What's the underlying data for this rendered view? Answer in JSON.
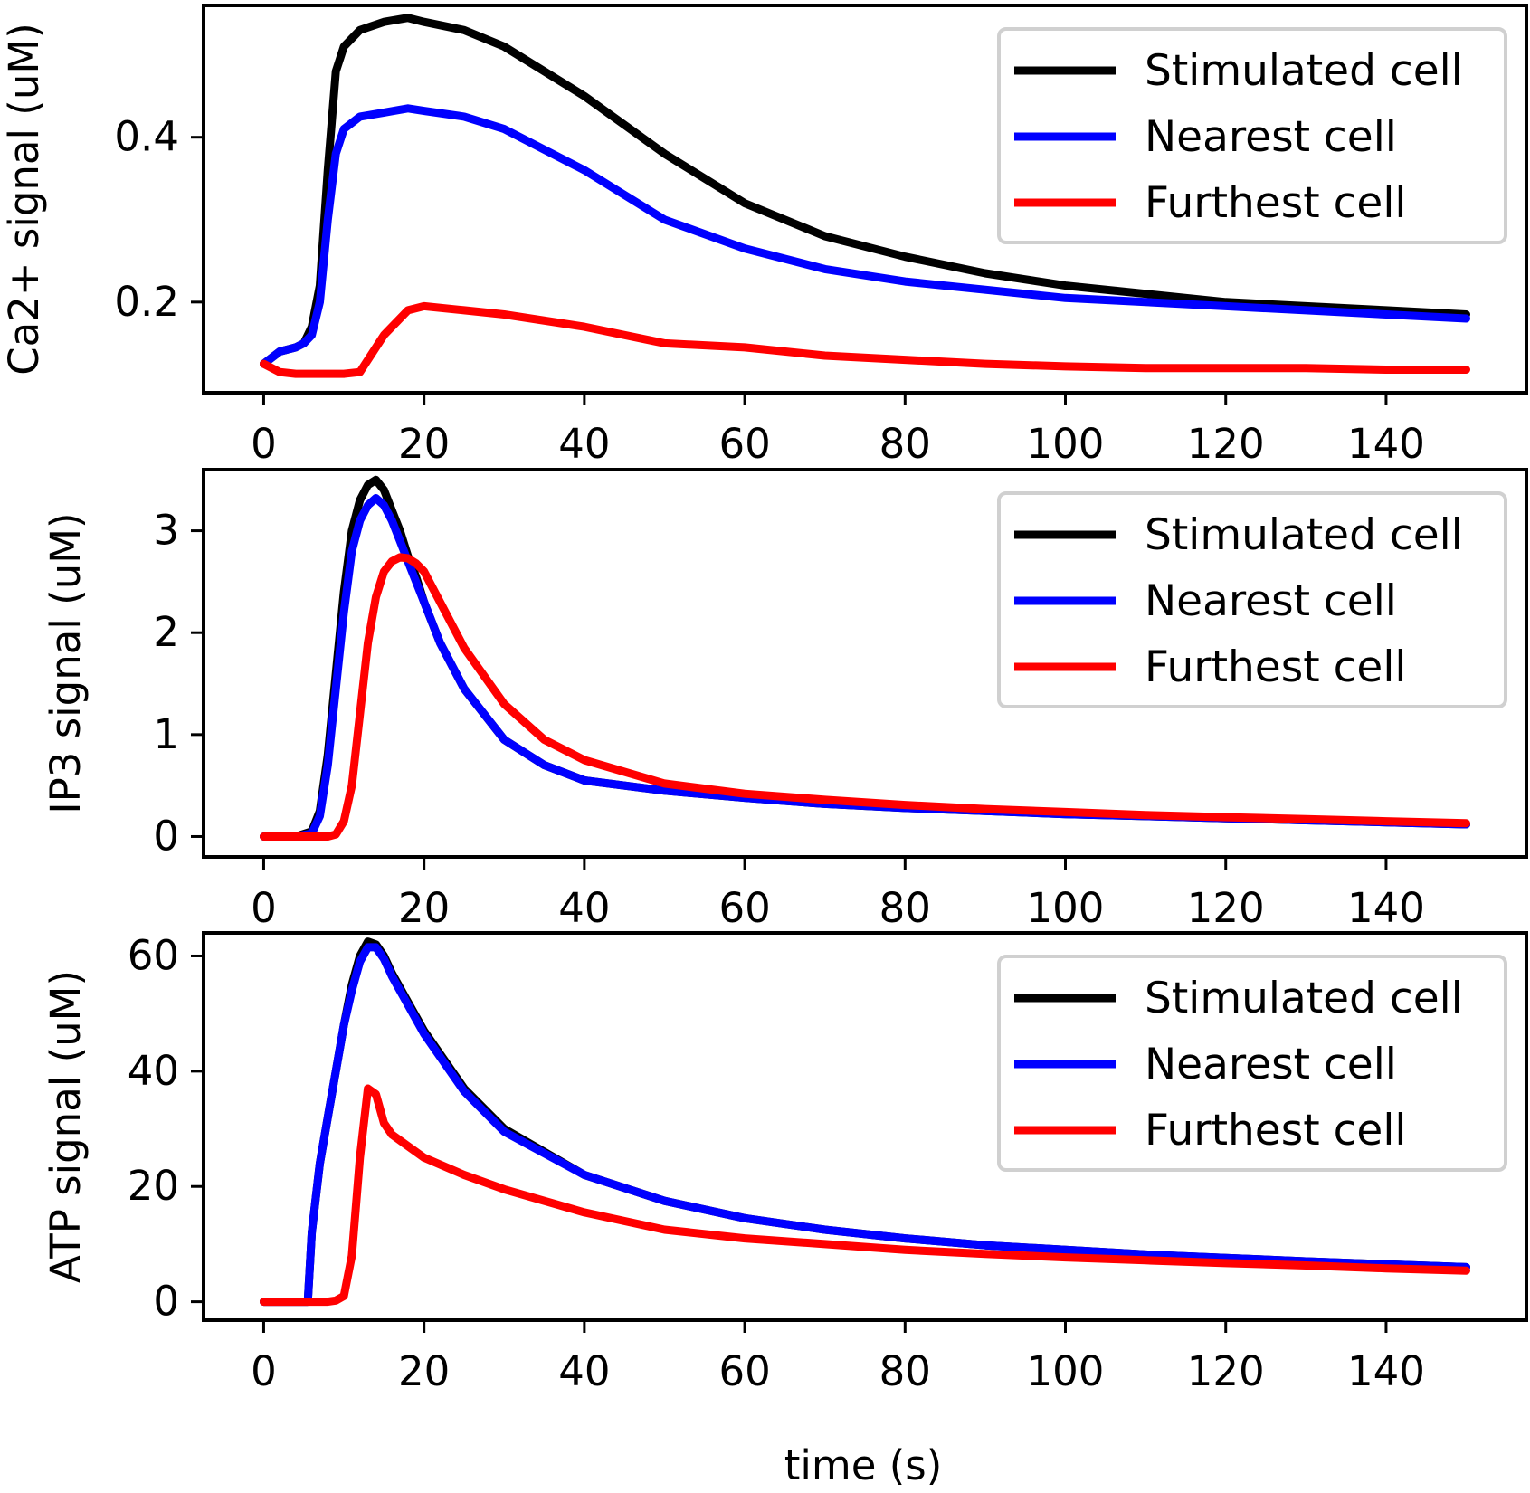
{
  "figure": {
    "xlabel": "time (s)",
    "xticks": [
      0,
      20,
      40,
      60,
      80,
      100,
      120,
      140
    ]
  },
  "chart_data": [
    {
      "type": "line",
      "ylabel": "Ca2+ signal (uM)",
      "xlim": [
        -7.5,
        157.5
      ],
      "ylim": [
        0.09,
        0.56
      ],
      "yticks": [
        0.2,
        0.4
      ],
      "ytick_labels": [
        "0.2",
        "0.4"
      ],
      "legend_position": "top-right",
      "grid": false,
      "x": [
        0,
        2,
        4,
        5,
        6,
        7,
        8,
        9,
        10,
        12,
        15,
        18,
        20,
        25,
        30,
        40,
        50,
        60,
        70,
        80,
        90,
        100,
        110,
        120,
        130,
        140,
        150
      ],
      "series": [
        {
          "name": "Stimulated cell",
          "color": "#000000",
          "values": [
            0.125,
            0.14,
            0.145,
            0.15,
            0.17,
            0.22,
            0.36,
            0.48,
            0.51,
            0.53,
            0.54,
            0.545,
            0.54,
            0.53,
            0.51,
            0.45,
            0.38,
            0.32,
            0.28,
            0.255,
            0.235,
            0.22,
            0.21,
            0.2,
            0.195,
            0.19,
            0.185
          ]
        },
        {
          "name": "Nearest cell",
          "color": "#0000ff",
          "values": [
            0.125,
            0.14,
            0.145,
            0.15,
            0.16,
            0.2,
            0.3,
            0.38,
            0.41,
            0.425,
            0.43,
            0.435,
            0.432,
            0.425,
            0.41,
            0.36,
            0.3,
            0.265,
            0.24,
            0.225,
            0.215,
            0.205,
            0.2,
            0.195,
            0.19,
            0.185,
            0.18
          ]
        },
        {
          "name": "Furthest cell",
          "color": "#ff0000",
          "values": [
            0.125,
            0.115,
            0.113,
            0.113,
            0.113,
            0.113,
            0.113,
            0.113,
            0.113,
            0.115,
            0.16,
            0.19,
            0.195,
            0.19,
            0.185,
            0.17,
            0.15,
            0.145,
            0.135,
            0.13,
            0.125,
            0.122,
            0.12,
            0.12,
            0.12,
            0.118,
            0.118
          ]
        }
      ]
    },
    {
      "type": "line",
      "ylabel": "IP3 signal (uM)",
      "xlim": [
        -7.5,
        157.5
      ],
      "ylim": [
        -0.2,
        3.6
      ],
      "yticks": [
        0,
        1,
        2,
        3
      ],
      "ytick_labels": [
        "0",
        "1",
        "2",
        "3"
      ],
      "legend_position": "top-right",
      "grid": false,
      "x": [
        0,
        4,
        6,
        7,
        8,
        9,
        10,
        11,
        12,
        13,
        14,
        15,
        16,
        17,
        18,
        19,
        20,
        22,
        25,
        30,
        35,
        40,
        50,
        60,
        70,
        80,
        90,
        100,
        110,
        120,
        130,
        140,
        150
      ],
      "series": [
        {
          "name": "Stimulated cell",
          "color": "#000000",
          "values": [
            0.0,
            0.0,
            0.05,
            0.25,
            0.8,
            1.6,
            2.4,
            3.0,
            3.3,
            3.45,
            3.5,
            3.4,
            3.2,
            3.0,
            2.75,
            2.55,
            2.3,
            1.9,
            1.45,
            0.95,
            0.7,
            0.55,
            0.45,
            0.38,
            0.32,
            0.28,
            0.25,
            0.22,
            0.2,
            0.18,
            0.16,
            0.14,
            0.12
          ]
        },
        {
          "name": "Nearest cell",
          "color": "#0000ff",
          "values": [
            0.0,
            0.0,
            0.03,
            0.2,
            0.7,
            1.45,
            2.2,
            2.8,
            3.1,
            3.25,
            3.32,
            3.25,
            3.1,
            2.9,
            2.7,
            2.5,
            2.3,
            1.9,
            1.45,
            0.95,
            0.7,
            0.55,
            0.45,
            0.38,
            0.32,
            0.28,
            0.25,
            0.22,
            0.2,
            0.18,
            0.16,
            0.14,
            0.12
          ]
        },
        {
          "name": "Furthest cell",
          "color": "#ff0000",
          "values": [
            0.0,
            0.0,
            0.0,
            0.0,
            0.0,
            0.02,
            0.15,
            0.5,
            1.2,
            1.9,
            2.35,
            2.6,
            2.7,
            2.74,
            2.73,
            2.68,
            2.6,
            2.3,
            1.85,
            1.3,
            0.95,
            0.75,
            0.52,
            0.42,
            0.36,
            0.31,
            0.27,
            0.24,
            0.21,
            0.19,
            0.17,
            0.15,
            0.13
          ]
        }
      ]
    },
    {
      "type": "line",
      "ylabel": "ATP signal (uM)",
      "xlim": [
        -7.5,
        157.5
      ],
      "ylim": [
        -3.2,
        64.0
      ],
      "yticks": [
        0,
        20,
        40,
        60
      ],
      "ytick_labels": [
        "0",
        "20",
        "40",
        "60"
      ],
      "legend_position": "top-right",
      "grid": false,
      "x": [
        0,
        5.5,
        6,
        6.5,
        7,
        8,
        9,
        10,
        11,
        12,
        13,
        14,
        15,
        16,
        18,
        20,
        25,
        30,
        40,
        50,
        60,
        70,
        80,
        90,
        100,
        110,
        120,
        130,
        140,
        150
      ],
      "series": [
        {
          "name": "Stimulated cell",
          "color": "#000000",
          "values": [
            0.0,
            0.0,
            12.0,
            18.0,
            24.0,
            32.0,
            40.0,
            48.0,
            55.0,
            60.0,
            62.5,
            62.0,
            60.0,
            57.0,
            52.0,
            47.0,
            37.0,
            30.0,
            22.0,
            17.5,
            14.5,
            12.5,
            11.0,
            9.8,
            9.0,
            8.2,
            7.6,
            7.0,
            6.5,
            6.0
          ]
        },
        {
          "name": "Nearest cell",
          "color": "#0000ff",
          "values": [
            0.0,
            0.0,
            12.0,
            18.0,
            24.0,
            32.0,
            40.0,
            48.0,
            54.0,
            59.0,
            61.5,
            61.5,
            59.5,
            56.5,
            51.5,
            46.5,
            36.5,
            29.5,
            22.0,
            17.5,
            14.5,
            12.5,
            11.0,
            9.8,
            9.0,
            8.2,
            7.6,
            7.0,
            6.5,
            6.0
          ]
        },
        {
          "name": "Furthest cell",
          "color": "#ff0000",
          "values": [
            0.0,
            0.0,
            0.0,
            0.0,
            0.0,
            0.0,
            0.2,
            1.0,
            8.0,
            25.0,
            37.0,
            36.0,
            31.0,
            29.0,
            27.0,
            25.0,
            22.0,
            19.5,
            15.5,
            12.5,
            11.0,
            10.0,
            9.0,
            8.3,
            7.7,
            7.2,
            6.7,
            6.3,
            5.8,
            5.4
          ]
        }
      ]
    }
  ]
}
